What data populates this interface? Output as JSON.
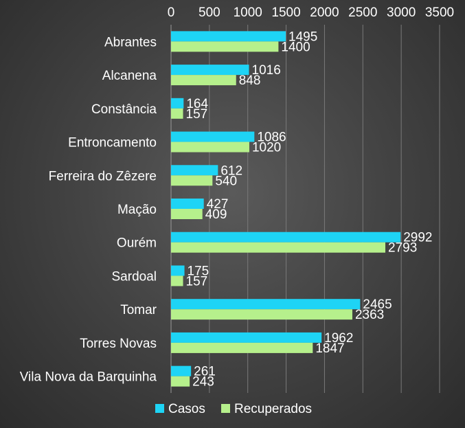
{
  "chart_data": {
    "type": "bar",
    "orientation": "horizontal",
    "categories": [
      "Abrantes",
      "Alcanena",
      "Constância",
      "Entroncamento",
      "Ferreira do Zêzere",
      "Mação",
      "Ourém",
      "Sardoal",
      "Tomar",
      "Torres Novas",
      "Vila Nova da Barquinha"
    ],
    "series": [
      {
        "name": "Casos",
        "color": "#1ed4f5",
        "values": [
          1495,
          1016,
          164,
          1086,
          612,
          427,
          2992,
          175,
          2465,
          1962,
          261
        ]
      },
      {
        "name": "Recuperados",
        "color": "#b6f08c",
        "values": [
          1400,
          848,
          157,
          1020,
          540,
          409,
          2793,
          157,
          2363,
          1847,
          243
        ]
      }
    ],
    "xlim": [
      0,
      3500
    ],
    "xticks": [
      "0",
      "500",
      "1000",
      "1500",
      "2000",
      "2500",
      "3000",
      "3500"
    ],
    "axis_position": "top",
    "grid": true,
    "legend": "bottom"
  }
}
